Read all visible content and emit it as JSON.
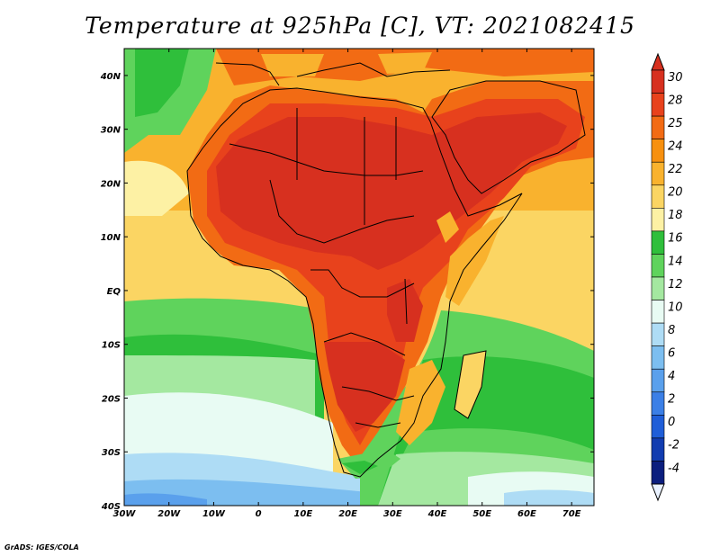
{
  "title": "Temperature at 925hPa [C], VT: 2021082415",
  "credit": "GrADS: IGES/COLA",
  "map": {
    "lon_range": [
      -30,
      75
    ],
    "lat_range": [
      -40,
      45
    ],
    "lon_labels": [
      "30W",
      "20W",
      "10W",
      "0",
      "10E",
      "20E",
      "30E",
      "40E",
      "50E",
      "60E",
      "70E"
    ],
    "lat_labels": [
      "40N",
      "30N",
      "20N",
      "10N",
      "EQ",
      "10S",
      "20S",
      "30S",
      "40S"
    ]
  },
  "colorbar": {
    "labels": [
      "30",
      "28",
      "25",
      "24",
      "22",
      "20",
      "18",
      "16",
      "14",
      "12",
      "10",
      "8",
      "6",
      "4",
      "2",
      "0",
      "-2",
      "-4"
    ],
    "colors": [
      "#d7301f",
      "#e8421c",
      "#f26b14",
      "#f7900f",
      "#f9b22e",
      "#fbd563",
      "#fdf1a4",
      "#2fbf3b",
      "#5fd35c",
      "#a4e8a0",
      "#e8fbf3",
      "#aedcf5",
      "#7cbef0",
      "#5aa0ec",
      "#3b7fe6",
      "#1f5ed8",
      "#113cb0",
      "#0b1e7e"
    ],
    "over_color": "#d7301f",
    "under_color": "#eaf2ff"
  }
}
